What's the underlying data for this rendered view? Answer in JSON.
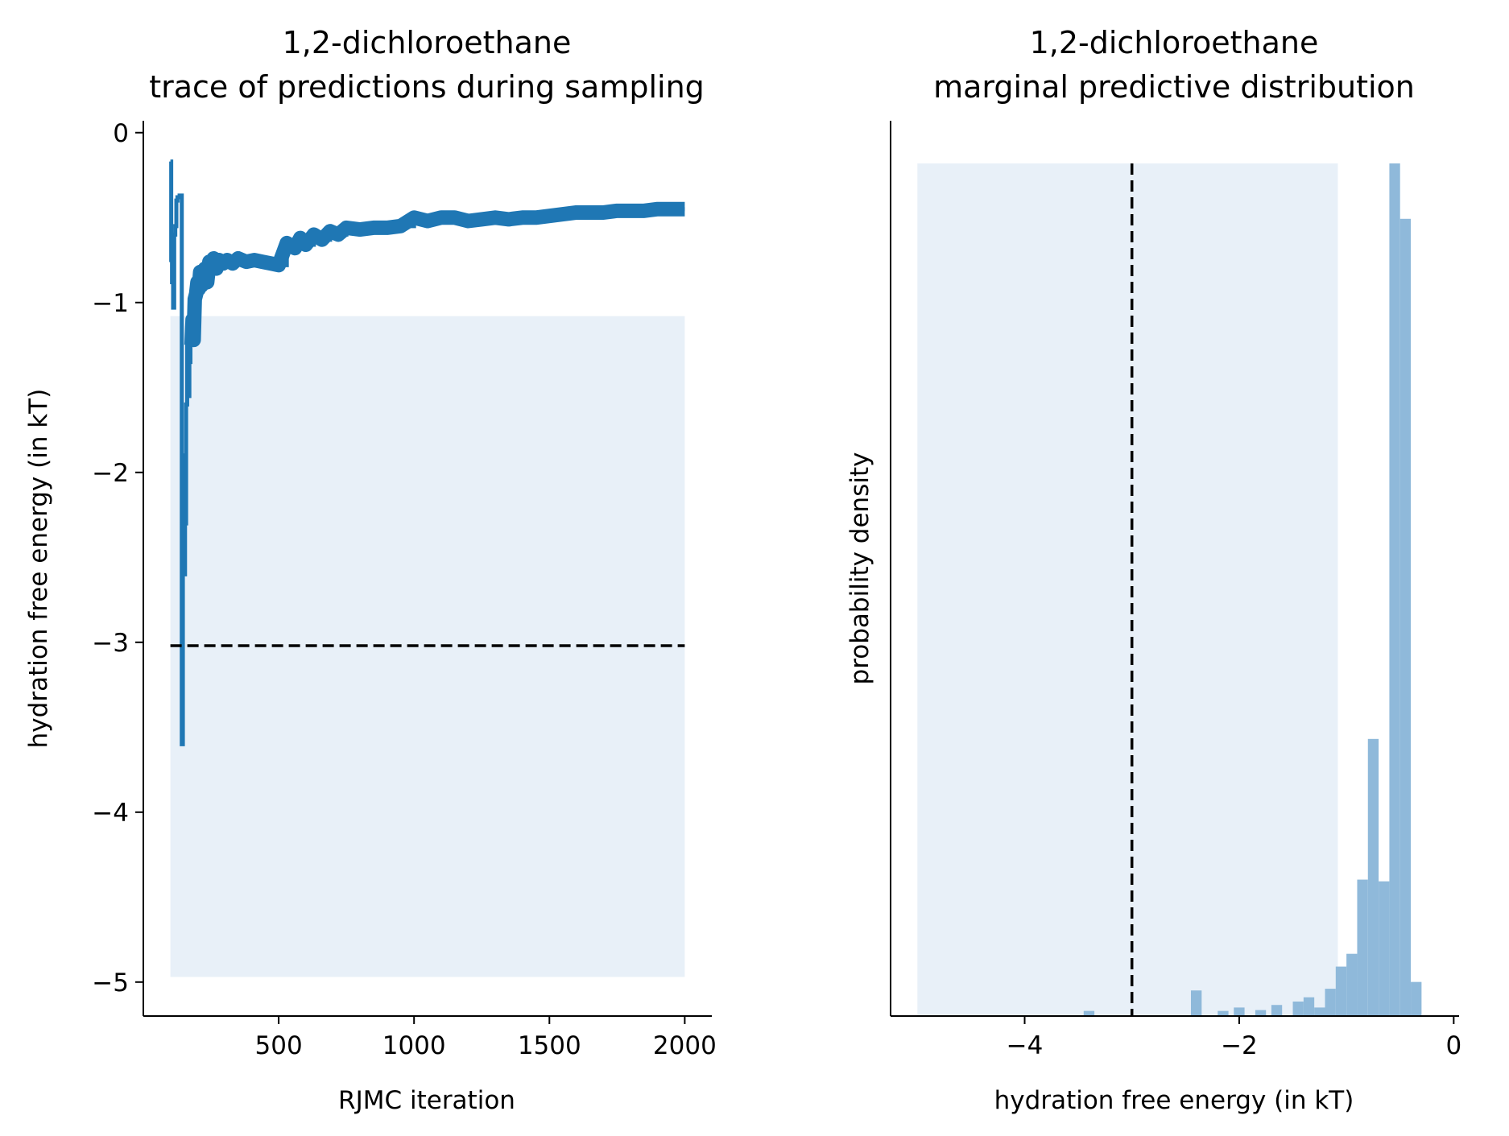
{
  "colors": {
    "trace": "#1f77b4",
    "histogram": "#8fb9da",
    "band": "#e8f0f8",
    "reference_line": "#000000"
  },
  "chart_data": [
    {
      "type": "line",
      "title_line1": "1,2-dichloroethane",
      "title_line2": "trace of predictions during sampling",
      "xlabel": "RJMC iteration",
      "ylabel": "hydration free energy (in kT)",
      "xlim": [
        0,
        2100
      ],
      "ylim": [
        -5.2,
        0.07
      ],
      "xticks": [
        500,
        1000,
        1500,
        2000
      ],
      "xtick_labels": [
        "500",
        "1000",
        "1500",
        "2000"
      ],
      "yticks": [
        0,
        -1,
        -2,
        -3,
        -4,
        -5
      ],
      "ytick_labels": [
        "0",
        "−1",
        "−2",
        "−3",
        "−4",
        "−5"
      ],
      "reference_line": {
        "y": -3.02,
        "x_range": [
          100,
          2000
        ],
        "style": "dashed"
      },
      "band": {
        "x_range": [
          100,
          2000
        ],
        "y_range": [
          -4.97,
          -1.08
        ]
      },
      "series": [
        {
          "x": [
            100,
            103,
            106,
            110,
            114,
            118,
            122,
            126,
            130,
            134,
            138,
            142,
            146,
            150,
            154,
            158,
            162,
            166,
            170,
            174,
            178,
            182,
            186,
            190,
            195,
            200,
            205,
            210,
            215,
            220,
            228,
            236,
            244,
            252,
            260,
            270,
            280,
            295,
            310,
            330,
            350,
            380,
            410,
            440,
            470,
            500,
            530,
            560,
            580,
            600,
            630,
            660,
            690,
            720,
            750,
            800,
            850,
            900,
            950,
            1000,
            1050,
            1100,
            1150,
            1200,
            1250,
            1300,
            1350,
            1400,
            1450,
            1500,
            1550,
            1600,
            1650,
            1700,
            1750,
            1800,
            1850,
            1900,
            1950,
            2000
          ],
          "y": [
            -0.17,
            -0.75,
            -0.88,
            -1.03,
            -0.6,
            -0.55,
            -0.4,
            -0.38,
            -0.38,
            -0.37,
            -0.37,
            -3.6,
            -1.9,
            -2.6,
            -2.3,
            -1.6,
            -1.15,
            -1.55,
            -1.35,
            -1.05,
            -1.25,
            -1.1,
            -1.22,
            -0.98,
            -0.95,
            -0.88,
            -0.92,
            -0.82,
            -0.9,
            -0.85,
            -0.8,
            -0.88,
            -0.76,
            -0.78,
            -0.74,
            -0.8,
            -0.75,
            -0.77,
            -0.75,
            -0.77,
            -0.74,
            -0.76,
            -0.75,
            -0.76,
            -0.77,
            -0.78,
            -0.65,
            -0.68,
            -0.62,
            -0.66,
            -0.6,
            -0.63,
            -0.58,
            -0.6,
            -0.56,
            -0.57,
            -0.56,
            -0.56,
            -0.55,
            -0.5,
            -0.52,
            -0.5,
            -0.5,
            -0.52,
            -0.51,
            -0.5,
            -0.51,
            -0.5,
            -0.5,
            -0.49,
            -0.48,
            -0.47,
            -0.47,
            -0.47,
            -0.46,
            -0.46,
            -0.46,
            -0.45,
            -0.45,
            -0.45
          ]
        }
      ]
    },
    {
      "type": "bar",
      "title_line1": "1,2-dichloroethane",
      "title_line2": "marginal predictive distribution",
      "xlabel": "hydration free energy (in kT)",
      "ylabel": "probability density",
      "xlim": [
        -5.25,
        0.05
      ],
      "ylim": [
        0,
        1.05
      ],
      "xticks": [
        -4,
        -2,
        0
      ],
      "xtick_labels": [
        "−4",
        "−2",
        "0"
      ],
      "reference_line": {
        "x": -3.0,
        "style": "dashed"
      },
      "band": {
        "x_range": [
          -5.0,
          -1.08
        ]
      },
      "bins": [
        {
          "x0": -3.45,
          "x1": -3.35,
          "density": 0.006
        },
        {
          "x0": -2.45,
          "x1": -2.35,
          "density": 0.03
        },
        {
          "x0": -2.2,
          "x1": -2.1,
          "density": 0.006
        },
        {
          "x0": -2.05,
          "x1": -1.95,
          "density": 0.01
        },
        {
          "x0": -1.85,
          "x1": -1.75,
          "density": 0.007
        },
        {
          "x0": -1.7,
          "x1": -1.6,
          "density": 0.013
        },
        {
          "x0": -1.5,
          "x1": -1.4,
          "density": 0.017
        },
        {
          "x0": -1.4,
          "x1": -1.3,
          "density": 0.022
        },
        {
          "x0": -1.3,
          "x1": -1.2,
          "density": 0.01
        },
        {
          "x0": -1.2,
          "x1": -1.1,
          "density": 0.032
        },
        {
          "x0": -1.1,
          "x1": -1.0,
          "density": 0.058
        },
        {
          "x0": -1.0,
          "x1": -0.9,
          "density": 0.073
        },
        {
          "x0": -0.9,
          "x1": -0.8,
          "density": 0.16
        },
        {
          "x0": -0.8,
          "x1": -0.7,
          "density": 0.325
        },
        {
          "x0": -0.7,
          "x1": -0.6,
          "density": 0.158
        },
        {
          "x0": -0.6,
          "x1": -0.5,
          "density": 1.0
        },
        {
          "x0": -0.5,
          "x1": -0.4,
          "density": 0.935
        },
        {
          "x0": -0.4,
          "x1": -0.3,
          "density": 0.04
        }
      ]
    }
  ]
}
